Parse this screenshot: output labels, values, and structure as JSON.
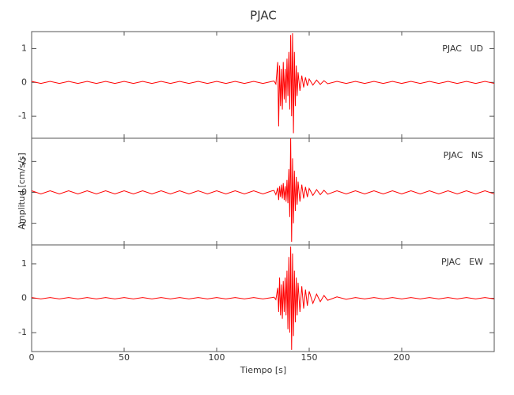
{
  "chart_data": {
    "type": "line",
    "title": "PJAC",
    "xlabel": "Tiempo [s]",
    "ylabel": "Amplitud [cm/s/s]",
    "color": "#ff0000",
    "xlim": [
      0,
      250
    ],
    "xticks": [
      0,
      50,
      100,
      150,
      200
    ],
    "x": [
      0,
      5,
      10,
      15,
      20,
      25,
      30,
      35,
      40,
      45,
      50,
      55,
      60,
      65,
      70,
      75,
      80,
      85,
      90,
      95,
      100,
      105,
      110,
      115,
      120,
      125,
      130,
      131,
      132,
      133,
      133.5,
      134,
      134.5,
      135,
      135.5,
      136,
      136.5,
      137,
      137.5,
      138,
      138.5,
      139,
      139.5,
      140,
      140.5,
      141,
      141.5,
      142,
      142.5,
      143,
      143.5,
      144,
      145,
      146,
      147,
      148,
      149,
      150,
      152,
      154,
      156,
      158,
      160,
      165,
      170,
      175,
      180,
      185,
      190,
      195,
      200,
      205,
      210,
      215,
      220,
      225,
      230,
      235,
      240,
      245,
      250
    ],
    "panels": [
      {
        "label": "PJAC   UD",
        "ylim": [
          -1.65,
          1.5
        ],
        "yticks": [
          -1,
          0,
          1
        ],
        "values": [
          0.03,
          -0.03,
          0.03,
          -0.03,
          0.03,
          -0.03,
          0.03,
          -0.03,
          0.03,
          -0.03,
          0.03,
          -0.03,
          0.03,
          -0.03,
          0.03,
          -0.03,
          0.03,
          -0.03,
          0.03,
          -0.03,
          0.03,
          -0.03,
          0.03,
          -0.03,
          0.03,
          -0.03,
          0.03,
          0.04,
          -0.05,
          0.6,
          -1.3,
          0.5,
          -0.7,
          0.4,
          -0.8,
          0.6,
          -0.5,
          0.4,
          -0.6,
          0.7,
          -0.4,
          0.9,
          -0.8,
          1.4,
          -1.0,
          1.45,
          -1.5,
          0.9,
          -0.7,
          0.5,
          -0.4,
          0.3,
          -0.25,
          0.2,
          -0.15,
          0.15,
          -0.1,
          0.1,
          -0.08,
          0.07,
          -0.06,
          0.05,
          -0.04,
          0.03,
          -0.03,
          0.03,
          -0.03,
          0.03,
          -0.03,
          0.03,
          -0.03,
          0.03,
          -0.03,
          0.03,
          -0.03,
          0.03,
          -0.03,
          0.03,
          -0.03,
          0.03,
          -0.03
        ]
      },
      {
        "label": "PJAC   NS",
        "ylim": [
          -3.4,
          3.5
        ],
        "yticks": [
          -2,
          0,
          2
        ],
        "values": [
          0.1,
          -0.1,
          0.1,
          -0.1,
          0.1,
          -0.1,
          0.1,
          -0.1,
          0.1,
          -0.1,
          0.1,
          -0.1,
          0.1,
          -0.1,
          0.1,
          -0.1,
          0.1,
          -0.1,
          0.1,
          -0.1,
          0.1,
          -0.1,
          0.1,
          -0.1,
          0.1,
          -0.1,
          0.1,
          0.12,
          -0.15,
          0.3,
          -0.5,
          0.4,
          -0.3,
          0.5,
          -0.4,
          0.6,
          -0.5,
          0.4,
          -0.6,
          0.8,
          -0.7,
          1.5,
          -1.6,
          3.5,
          -3.2,
          2.2,
          -2.0,
          1.4,
          -1.2,
          1.0,
          -0.8,
          0.7,
          -0.6,
          0.5,
          -0.4,
          0.35,
          -0.3,
          0.25,
          -0.2,
          0.18,
          -0.15,
          0.13,
          -0.12,
          0.1,
          -0.1,
          0.1,
          -0.1,
          0.1,
          -0.1,
          0.1,
          -0.1,
          0.1,
          -0.1,
          0.1,
          -0.1,
          0.1,
          -0.1,
          0.1,
          -0.1,
          0.1,
          -0.1
        ]
      },
      {
        "label": "PJAC   EW",
        "ylim": [
          -1.55,
          1.55
        ],
        "yticks": [
          -1,
          0,
          1
        ],
        "values": [
          0.02,
          -0.02,
          0.02,
          -0.02,
          0.02,
          -0.02,
          0.02,
          -0.02,
          0.02,
          -0.02,
          0.02,
          -0.02,
          0.02,
          -0.02,
          0.02,
          -0.02,
          0.02,
          -0.02,
          0.02,
          -0.02,
          0.02,
          -0.02,
          0.02,
          -0.02,
          0.02,
          -0.02,
          0.02,
          0.03,
          -0.04,
          0.3,
          -0.4,
          0.6,
          -0.5,
          0.4,
          -0.6,
          0.5,
          -0.4,
          0.6,
          -0.5,
          0.8,
          -0.9,
          1.2,
          -1.0,
          1.5,
          -1.5,
          1.3,
          -1.1,
          0.8,
          -0.7,
          0.6,
          -0.5,
          0.45,
          -0.4,
          0.35,
          -0.3,
          0.25,
          -0.22,
          0.2,
          -0.15,
          0.12,
          -0.1,
          0.08,
          -0.06,
          0.04,
          -0.03,
          0.02,
          -0.02,
          0.02,
          -0.02,
          0.02,
          -0.02,
          0.02,
          -0.02,
          0.02,
          -0.02,
          0.02,
          -0.02,
          0.02,
          -0.02,
          0.02,
          -0.02
        ]
      }
    ]
  }
}
